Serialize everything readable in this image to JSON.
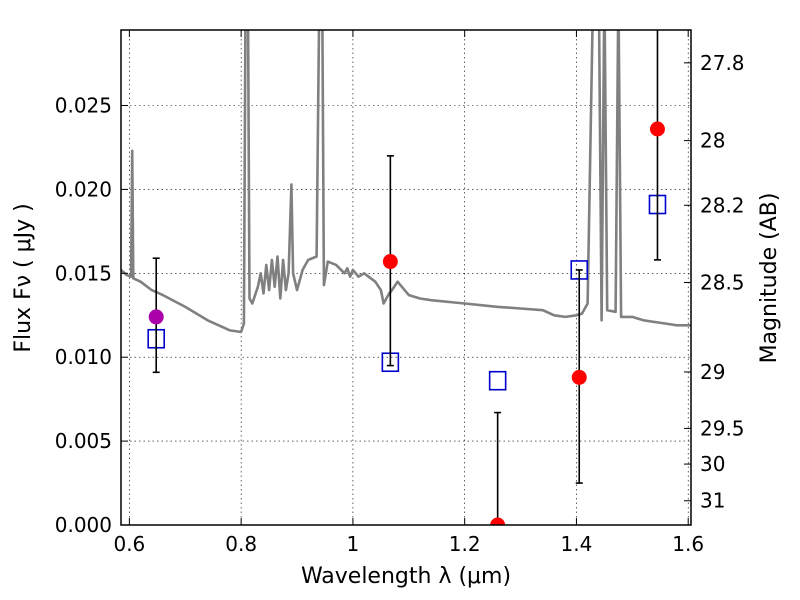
{
  "chart_data": {
    "type": "scatter",
    "xlabel": "Wavelength  λ (μm)",
    "ylabel": "Flux  Fν  ( μJy )",
    "ylabel_right": "Magnitude (AB)",
    "xlim": [
      0.585,
      1.605
    ],
    "ylim": [
      0.0,
      0.0295
    ],
    "grid": true,
    "x_ticks": [
      {
        "value": 0.6,
        "label": "0.6"
      },
      {
        "value": 0.8,
        "label": "0.8"
      },
      {
        "value": 1.0,
        "label": "1"
      },
      {
        "value": 1.2,
        "label": "1.2"
      },
      {
        "value": 1.4,
        "label": "1.4"
      },
      {
        "value": 1.6,
        "label": "1.6"
      }
    ],
    "y_ticks": [
      {
        "value": 0.0,
        "label": "0.000"
      },
      {
        "value": 0.005,
        "label": "0.005"
      },
      {
        "value": 0.01,
        "label": "0.010"
      },
      {
        "value": 0.015,
        "label": "0.015"
      },
      {
        "value": 0.02,
        "label": "0.020"
      },
      {
        "value": 0.025,
        "label": "0.025"
      }
    ],
    "mag_ticks": [
      {
        "value": 27.8,
        "label": "27.8"
      },
      {
        "value": 28.0,
        "label": "28"
      },
      {
        "value": 28.2,
        "label": "28.2"
      },
      {
        "value": 28.5,
        "label": "28.5"
      },
      {
        "value": 29.0,
        "label": "29"
      },
      {
        "value": 29.5,
        "label": "29.5"
      },
      {
        "value": 30.0,
        "label": "30"
      },
      {
        "value": 31.0,
        "label": "31"
      }
    ],
    "colors": {
      "model": "#808080",
      "observed": "#ff0000",
      "observed_first": "#aa00aa",
      "model_photometry": "#0000cc",
      "errorbar": "#000000"
    },
    "model_spectrum": [
      [
        0.585,
        0.0152
      ],
      [
        0.595,
        0.0149
      ],
      [
        0.603,
        0.0148
      ],
      [
        0.605,
        0.0223
      ],
      [
        0.607,
        0.0147
      ],
      [
        0.62,
        0.0145
      ],
      [
        0.64,
        0.014
      ],
      [
        0.66,
        0.0137
      ],
      [
        0.7,
        0.013
      ],
      [
        0.74,
        0.0122
      ],
      [
        0.78,
        0.0116
      ],
      [
        0.8,
        0.0115
      ],
      [
        0.805,
        0.012
      ],
      [
        0.808,
        0.032
      ],
      [
        0.812,
        0.032
      ],
      [
        0.815,
        0.0135
      ],
      [
        0.82,
        0.0132
      ],
      [
        0.83,
        0.0142
      ],
      [
        0.835,
        0.015
      ],
      [
        0.84,
        0.0138
      ],
      [
        0.845,
        0.0155
      ],
      [
        0.85,
        0.014
      ],
      [
        0.855,
        0.0158
      ],
      [
        0.86,
        0.0142
      ],
      [
        0.865,
        0.016
      ],
      [
        0.87,
        0.0135
      ],
      [
        0.875,
        0.0158
      ],
      [
        0.88,
        0.014
      ],
      [
        0.885,
        0.015
      ],
      [
        0.89,
        0.0203
      ],
      [
        0.893,
        0.015
      ],
      [
        0.9,
        0.014
      ],
      [
        0.91,
        0.0152
      ],
      [
        0.92,
        0.0158
      ],
      [
        0.935,
        0.016
      ],
      [
        0.94,
        0.032
      ],
      [
        0.945,
        0.032
      ],
      [
        0.948,
        0.0143
      ],
      [
        0.955,
        0.0157
      ],
      [
        0.97,
        0.0155
      ],
      [
        0.985,
        0.015
      ],
      [
        0.99,
        0.0153
      ],
      [
        0.995,
        0.0148
      ],
      [
        1.0,
        0.0152
      ],
      [
        1.01,
        0.0148
      ],
      [
        1.02,
        0.015
      ],
      [
        1.04,
        0.0145
      ],
      [
        1.05,
        0.014
      ],
      [
        1.055,
        0.0132
      ],
      [
        1.065,
        0.0138
      ],
      [
        1.07,
        0.014
      ],
      [
        1.08,
        0.0145
      ],
      [
        1.1,
        0.0137
      ],
      [
        1.12,
        0.0135
      ],
      [
        1.14,
        0.0134
      ],
      [
        1.2,
        0.0132
      ],
      [
        1.26,
        0.013
      ],
      [
        1.3,
        0.0129
      ],
      [
        1.34,
        0.0128
      ],
      [
        1.36,
        0.0125
      ],
      [
        1.38,
        0.0124
      ],
      [
        1.4,
        0.0125
      ],
      [
        1.41,
        0.0126
      ],
      [
        1.42,
        0.0132
      ],
      [
        1.43,
        0.032
      ],
      [
        1.44,
        0.032
      ],
      [
        1.445,
        0.0122
      ],
      [
        1.45,
        0.032
      ],
      [
        1.455,
        0.0128
      ],
      [
        1.47,
        0.0127
      ],
      [
        1.475,
        0.032
      ],
      [
        1.48,
        0.0124
      ],
      [
        1.5,
        0.0124
      ],
      [
        1.52,
        0.0122
      ],
      [
        1.54,
        0.0121
      ],
      [
        1.56,
        0.012
      ],
      [
        1.58,
        0.0119
      ],
      [
        1.605,
        0.0119
      ]
    ],
    "observed": [
      {
        "x": 0.648,
        "y": 0.0124,
        "err_low": 0.0091,
        "err_high": 0.0159
      },
      {
        "x": 1.067,
        "y": 0.0157,
        "err_low": 0.0095,
        "err_high": 0.022
      },
      {
        "x": 1.259,
        "y": 0.0,
        "err_low": 0.0,
        "err_high": 0.0067
      },
      {
        "x": 1.405,
        "y": 0.0088,
        "err_low": 0.0025,
        "err_high": 0.0152
      },
      {
        "x": 1.545,
        "y": 0.0236,
        "err_low": 0.0158,
        "err_high": 0.031
      }
    ],
    "model_photometry": [
      {
        "x": 0.648,
        "y": 0.0111
      },
      {
        "x": 1.067,
        "y": 0.0097
      },
      {
        "x": 1.259,
        "y": 0.0086
      },
      {
        "x": 1.405,
        "y": 0.0152
      },
      {
        "x": 1.545,
        "y": 0.0191
      }
    ]
  }
}
